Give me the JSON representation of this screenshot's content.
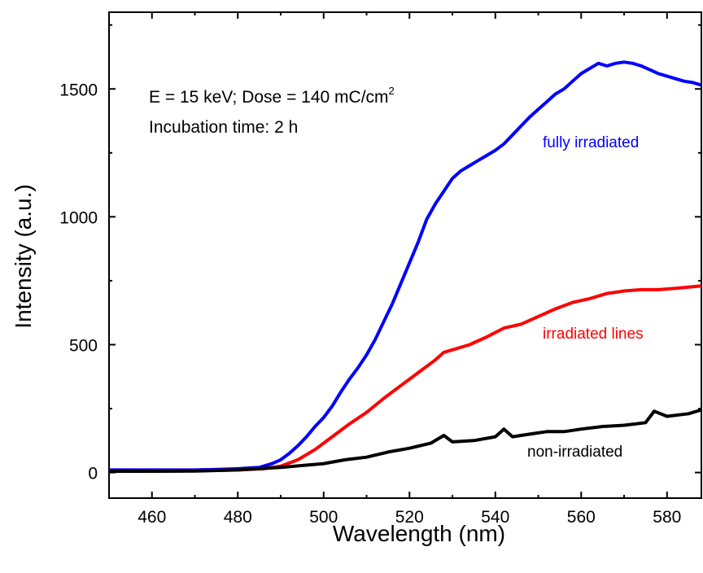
{
  "chart_data": {
    "type": "line",
    "title": "",
    "xlabel": "Wavelength (nm)",
    "ylabel": "Intensity (a.u.)",
    "xlim": [
      450,
      588
    ],
    "ylim": [
      -100,
      1800
    ],
    "xticks": [
      460,
      480,
      500,
      520,
      540,
      560,
      580
    ],
    "yticks": [
      0,
      500,
      1000,
      1500
    ],
    "x_tick_labels": [
      "460",
      "480",
      "500",
      "520",
      "540",
      "560",
      "580"
    ],
    "y_tick_labels": [
      "0",
      "500",
      "1000",
      "1500"
    ],
    "grid": false,
    "annotations": {
      "line1_main": "E = 15 keV; Dose = 140 mC/cm",
      "line1_sup": "2",
      "line2": "Incubation time: 2 h"
    },
    "series": [
      {
        "name": "fully irradiated",
        "color": "#0000ff",
        "x": [
          450,
          460,
          470,
          475,
          480,
          485,
          488,
          490,
          492,
          494,
          496,
          498,
          500,
          502,
          504,
          506,
          508,
          510,
          512,
          514,
          516,
          518,
          520,
          522,
          524,
          526,
          528,
          530,
          532,
          534,
          536,
          538,
          540,
          542,
          544,
          546,
          548,
          550,
          552,
          554,
          556,
          558,
          560,
          562,
          564,
          566,
          568,
          570,
          572,
          574,
          576,
          578,
          580,
          582,
          584,
          586,
          588
        ],
        "y": [
          10,
          10,
          10,
          12,
          15,
          20,
          35,
          50,
          75,
          105,
          140,
          180,
          215,
          260,
          315,
          365,
          410,
          460,
          520,
          590,
          660,
          740,
          820,
          900,
          990,
          1050,
          1100,
          1150,
          1180,
          1200,
          1220,
          1240,
          1260,
          1285,
          1320,
          1355,
          1390,
          1420,
          1450,
          1480,
          1500,
          1530,
          1560,
          1580,
          1600,
          1590,
          1600,
          1605,
          1600,
          1590,
          1575,
          1560,
          1550,
          1540,
          1530,
          1525,
          1515
        ]
      },
      {
        "name": "irradiated lines",
        "color": "#ff0000",
        "x": [
          450,
          460,
          470,
          480,
          486,
          490,
          494,
          498,
          502,
          506,
          510,
          514,
          518,
          522,
          526,
          528,
          530,
          534,
          538,
          542,
          546,
          550,
          554,
          558,
          562,
          566,
          570,
          574,
          578,
          582,
          588
        ],
        "y": [
          5,
          6,
          7,
          10,
          15,
          25,
          50,
          90,
          140,
          190,
          235,
          290,
          340,
          390,
          440,
          470,
          480,
          500,
          530,
          565,
          580,
          610,
          640,
          665,
          680,
          700,
          710,
          715,
          715,
          720,
          730
        ]
      },
      {
        "name": "non-irradiated",
        "color": "#000000",
        "x": [
          450,
          460,
          470,
          480,
          490,
          500,
          505,
          510,
          515,
          520,
          525,
          528,
          530,
          535,
          540,
          542,
          544,
          548,
          552,
          556,
          560,
          565,
          570,
          575,
          577,
          580,
          585,
          588
        ],
        "y": [
          5,
          5,
          6,
          10,
          20,
          35,
          50,
          60,
          80,
          95,
          115,
          145,
          120,
          125,
          140,
          170,
          140,
          150,
          160,
          160,
          170,
          180,
          185,
          195,
          240,
          220,
          230,
          245
        ]
      }
    ],
    "series_label_text": [
      "fully irradiated",
      "irradiated lines",
      "non-irradiated"
    ]
  }
}
